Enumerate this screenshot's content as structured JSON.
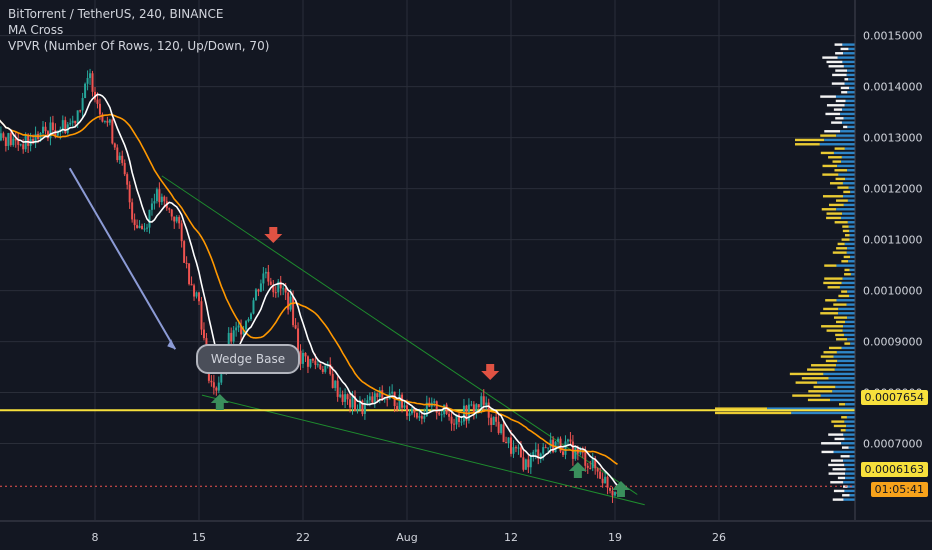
{
  "legend": {
    "title": "BitTorrent / TetherUS, 240, BINANCE",
    "indicator1": "MA Cross",
    "indicator2": "VPVR (Number Of Rows, 120, Up/Down, 70)"
  },
  "annotations": {
    "wedge_base": "Wedge Base"
  },
  "colors": {
    "background": "#131722",
    "grid": "#2a2e39",
    "up": "#26a69a",
    "down": "#ef5350",
    "ma_fast": "#ffffff",
    "ma_slow": "#ff9800",
    "trendline": "#1e8c2e",
    "hline": "#f7e03c",
    "arrow_down": "#e05243",
    "arrow_up": "#3a8f5c",
    "vp_up": "#2e86c8",
    "vp_down": "#f5d535",
    "vp_white": "#ffffff",
    "hand_arrow": "#8c9bd6"
  },
  "price_badges": {
    "hline_price": "0.0007654",
    "last_price": "0.0006163",
    "countdown": "01:05:41"
  },
  "chart_data": {
    "type": "candlestick",
    "symbol": "BitTorrent / TetherUS",
    "timeframe": "240",
    "exchange": "BINANCE",
    "y_ticks": [
      "0.0015000",
      "0.0014000",
      "0.0013000",
      "0.0012000",
      "0.0011000",
      "0.0010000",
      "0.0009000",
      "0.0008000",
      "0.0007000"
    ],
    "x_ticks": [
      "8",
      "15",
      "22",
      "Aug",
      "12",
      "19",
      "26"
    ],
    "ylim": [
      0.00055,
      0.00157
    ],
    "xlim_days": [
      1,
      28
    ],
    "horizontal_line": 0.0007654,
    "last_price": 0.0006163,
    "price_path": [
      {
        "x": 1,
        "y": 0.00137
      },
      {
        "x": 1.5,
        "y": 0.00131
      },
      {
        "x": 2.5,
        "y": 0.00129
      },
      {
        "x": 3.5,
        "y": 0.00129
      },
      {
        "x": 4.5,
        "y": 0.00131
      },
      {
        "x": 5.5,
        "y": 0.00132
      },
      {
        "x": 6.5,
        "y": 0.00133
      },
      {
        "x": 7.3,
        "y": 0.00139
      },
      {
        "x": 7.7,
        "y": 0.00142
      },
      {
        "x": 8.3,
        "y": 0.00136
      },
      {
        "x": 9,
        "y": 0.00132
      },
      {
        "x": 10,
        "y": 0.00122
      },
      {
        "x": 10.6,
        "y": 0.00114
      },
      {
        "x": 11.3,
        "y": 0.00112
      },
      {
        "x": 12,
        "y": 0.00119
      },
      {
        "x": 12.8,
        "y": 0.00116
      },
      {
        "x": 13.5,
        "y": 0.00114
      },
      {
        "x": 14.2,
        "y": 0.00104
      },
      {
        "x": 15,
        "y": 0.00098
      },
      {
        "x": 15.5,
        "y": 0.00086
      },
      {
        "x": 16,
        "y": 0.0008
      },
      {
        "x": 16.5,
        "y": 0.00084
      },
      {
        "x": 17,
        "y": 0.0009
      },
      {
        "x": 17.6,
        "y": 0.00092
      },
      {
        "x": 18.3,
        "y": 0.00095
      },
      {
        "x": 19,
        "y": 0.00101
      },
      {
        "x": 19.5,
        "y": 0.00104
      },
      {
        "x": 20,
        "y": 0.00101
      },
      {
        "x": 20.6,
        "y": 0.001
      },
      {
        "x": 21.2,
        "y": 0.00097
      },
      {
        "x": 21.8,
        "y": 0.00087
      },
      {
        "x": 22.5,
        "y": 0.00086
      },
      {
        "x": 23.5,
        "y": 0.00085
      },
      {
        "x": 24.2,
        "y": 0.00081
      },
      {
        "x": 25,
        "y": 0.00078
      },
      {
        "x": 26,
        "y": 0.00077
      },
      {
        "x": 27,
        "y": 0.00079
      },
      {
        "x": 28,
        "y": 0.00079
      },
      {
        "x": 29,
        "y": 0.00077
      },
      {
        "x": 30,
        "y": 0.00076
      },
      {
        "x": 31,
        "y": 0.00077
      },
      {
        "x": 32,
        "y": 0.00075
      },
      {
        "x": 33,
        "y": 0.00076
      },
      {
        "x": 34,
        "y": 0.00078
      },
      {
        "x": 35,
        "y": 0.00074
      },
      {
        "x": 36,
        "y": 0.00069
      },
      {
        "x": 37,
        "y": 0.00066
      },
      {
        "x": 38,
        "y": 0.00069
      },
      {
        "x": 39,
        "y": 0.0007
      },
      {
        "x": 40,
        "y": 0.00069
      },
      {
        "x": 41,
        "y": 0.00067
      },
      {
        "x": 42,
        "y": 0.00064
      },
      {
        "x": 42.8,
        "y": 0.00061
      },
      {
        "x": 43.3,
        "y": 0.000616
      }
    ]
  }
}
